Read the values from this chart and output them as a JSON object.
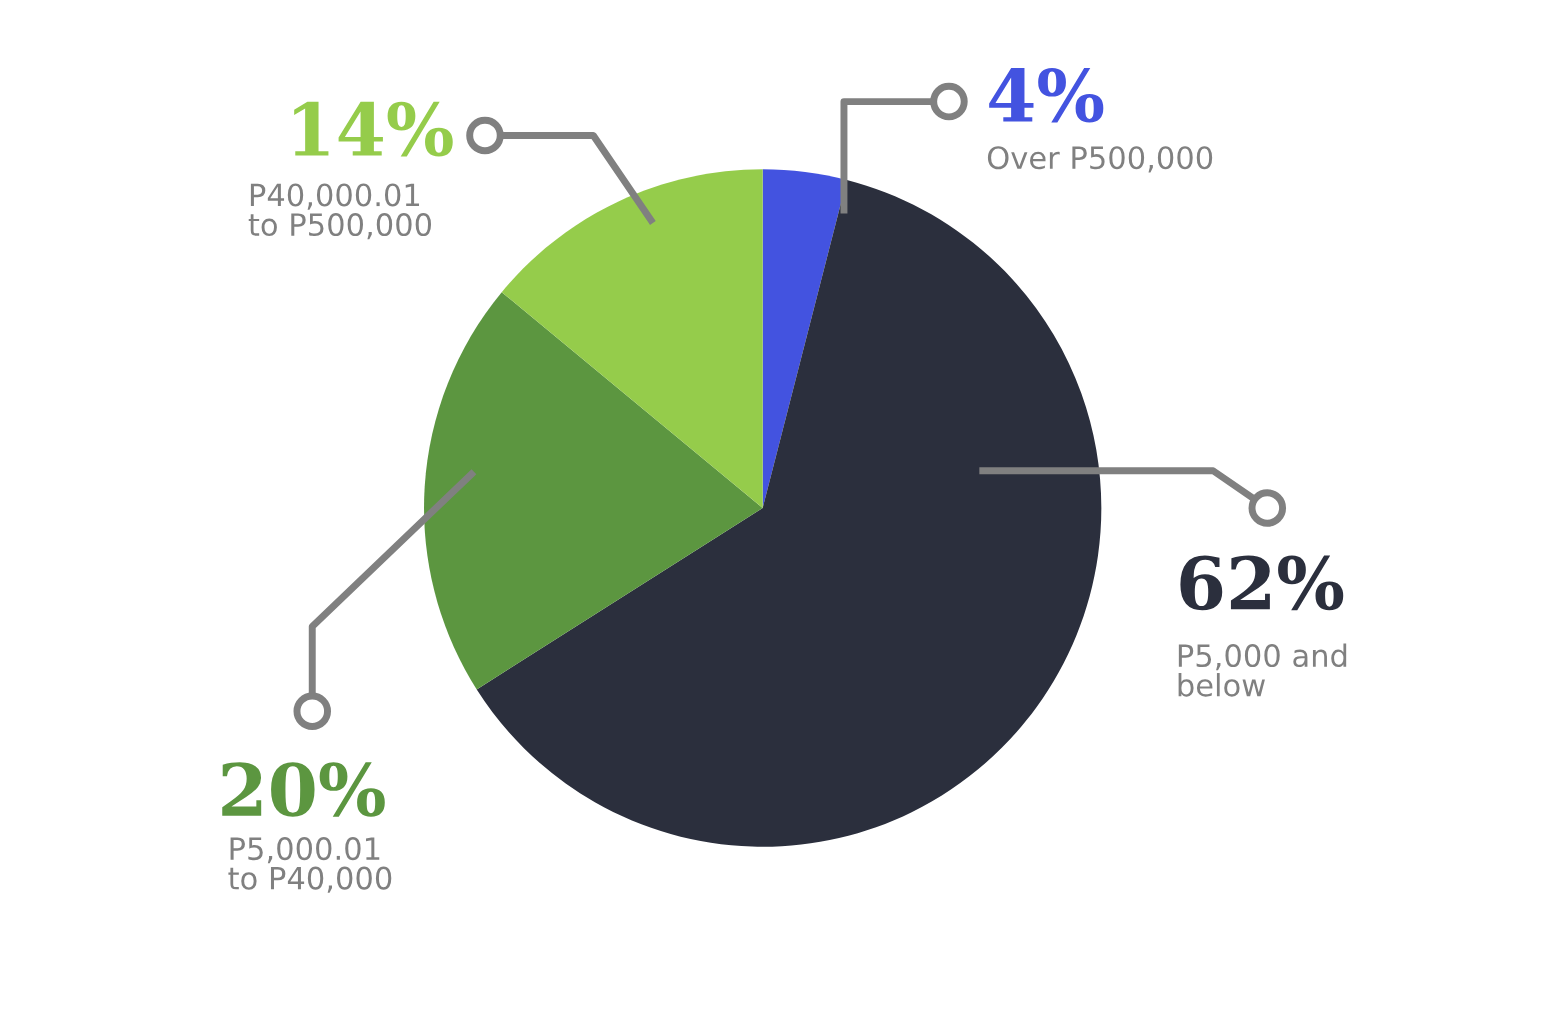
{
  "chart_data": {
    "type": "pie",
    "categories": [
      "Over P500,000",
      "P5,000 and\nbelow",
      "P5,000.01\nto P40,000",
      "P40,000.01\nto P500,000"
    ],
    "values": [
      4,
      62,
      20,
      14
    ],
    "value_labels": [
      "4%",
      "62%",
      "20%",
      "14%"
    ],
    "colors": [
      "#4353e0",
      "#2b2f3d",
      "#5c9640",
      "#95cc4b"
    ],
    "legend": false
  }
}
